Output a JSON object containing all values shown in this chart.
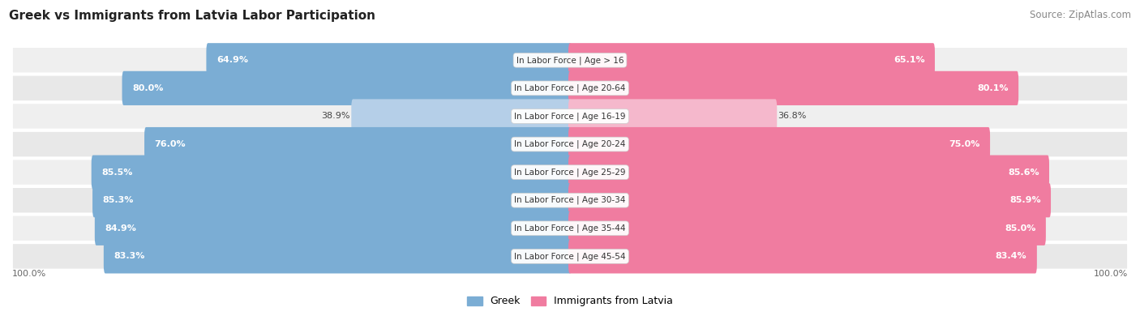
{
  "title": "Greek vs Immigrants from Latvia Labor Participation",
  "source": "Source: ZipAtlas.com",
  "categories": [
    "In Labor Force | Age > 16",
    "In Labor Force | Age 20-64",
    "In Labor Force | Age 16-19",
    "In Labor Force | Age 20-24",
    "In Labor Force | Age 25-29",
    "In Labor Force | Age 30-34",
    "In Labor Force | Age 35-44",
    "In Labor Force | Age 45-54"
  ],
  "greek_values": [
    64.9,
    80.0,
    38.9,
    76.0,
    85.5,
    85.3,
    84.9,
    83.3
  ],
  "latvia_values": [
    65.1,
    80.1,
    36.8,
    75.0,
    85.6,
    85.9,
    85.0,
    83.4
  ],
  "greek_color": "#7badd4",
  "greek_color_light": "#b5cfe8",
  "latvia_color": "#f07ca0",
  "latvia_color_light": "#f5b8cc",
  "row_bg_even": "#efefef",
  "row_bg_odd": "#e8e8e8",
  "title_fontsize": 11,
  "source_fontsize": 8.5,
  "label_fontsize": 7.5,
  "value_fontsize": 8,
  "legend_fontsize": 9
}
